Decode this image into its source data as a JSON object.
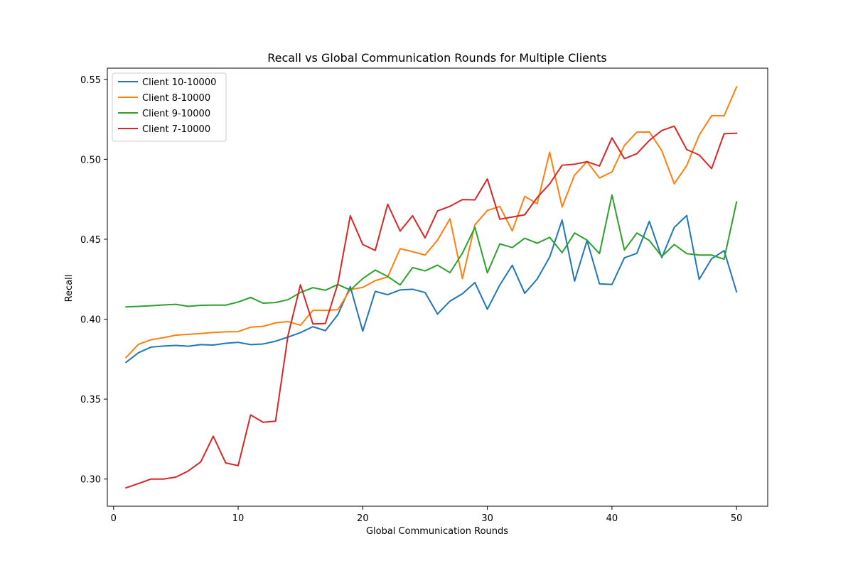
{
  "chart_data": {
    "type": "line",
    "title": "Recall vs Global Communication Rounds for Multiple Clients",
    "xlabel": "Global Communication Rounds",
    "ylabel": "Recall",
    "xlim": [
      -0.5,
      52.5
    ],
    "ylim": [
      0.283,
      0.557
    ],
    "xticks": [
      0,
      10,
      20,
      30,
      40,
      50
    ],
    "xtick_labels": [
      "0",
      "10",
      "20",
      "30",
      "40",
      "50"
    ],
    "yticks": [
      0.3,
      0.35,
      0.4,
      0.45,
      0.5,
      0.55
    ],
    "ytick_labels": [
      "0.30",
      "0.35",
      "0.40",
      "0.45",
      "0.50",
      "0.55"
    ],
    "grid": false,
    "legend_position": "top-left",
    "x": [
      1,
      2,
      3,
      4,
      5,
      6,
      7,
      8,
      9,
      10,
      11,
      12,
      13,
      14,
      15,
      16,
      17,
      18,
      19,
      20,
      21,
      22,
      23,
      24,
      25,
      26,
      27,
      28,
      29,
      30,
      31,
      32,
      33,
      34,
      35,
      36,
      37,
      38,
      39,
      40,
      41,
      42,
      43,
      44,
      45,
      46,
      47,
      48,
      49,
      50
    ],
    "series": [
      {
        "name": "Client 10-10000",
        "color": "#1f77b4",
        "values": [
          0.373,
          0.379,
          0.3825,
          0.3832,
          0.3836,
          0.3831,
          0.3841,
          0.3838,
          0.3849,
          0.3855,
          0.3841,
          0.3845,
          0.3862,
          0.3888,
          0.3916,
          0.3953,
          0.3928,
          0.4028,
          0.4203,
          0.3925,
          0.4174,
          0.4153,
          0.4183,
          0.4187,
          0.4167,
          0.4032,
          0.4113,
          0.4159,
          0.4229,
          0.4062,
          0.4214,
          0.4337,
          0.4162,
          0.4251,
          0.4388,
          0.462,
          0.4238,
          0.4492,
          0.4221,
          0.4217,
          0.4384,
          0.4412,
          0.4612,
          0.4385,
          0.4574,
          0.4648,
          0.4249,
          0.4378,
          0.4429,
          0.4171
        ]
      },
      {
        "name": "Client 8-10000",
        "color": "#ff7f0e",
        "values": [
          0.376,
          0.3843,
          0.3871,
          0.3884,
          0.39,
          0.3905,
          0.391,
          0.3917,
          0.3921,
          0.3922,
          0.395,
          0.3955,
          0.3977,
          0.3985,
          0.3962,
          0.4055,
          0.4055,
          0.4059,
          0.4185,
          0.4199,
          0.4241,
          0.4264,
          0.4441,
          0.4422,
          0.4401,
          0.4494,
          0.4628,
          0.4254,
          0.459,
          0.468,
          0.4705,
          0.4552,
          0.4768,
          0.4722,
          0.5044,
          0.4702,
          0.4901,
          0.4985,
          0.4883,
          0.4921,
          0.5087,
          0.517,
          0.5171,
          0.5054,
          0.4847,
          0.4961,
          0.5151,
          0.5273,
          0.5272,
          0.5453
        ]
      },
      {
        "name": "Client 9-10000",
        "color": "#2ca02c",
        "values": [
          0.4077,
          0.408,
          0.4084,
          0.4089,
          0.4093,
          0.408,
          0.4087,
          0.4088,
          0.4088,
          0.4107,
          0.4136,
          0.41,
          0.4104,
          0.4122,
          0.4167,
          0.4197,
          0.4181,
          0.4217,
          0.4182,
          0.4254,
          0.4307,
          0.4267,
          0.4214,
          0.4323,
          0.4302,
          0.4338,
          0.4291,
          0.4413,
          0.4574,
          0.429,
          0.4471,
          0.4448,
          0.4506,
          0.4475,
          0.4512,
          0.4416,
          0.4539,
          0.4494,
          0.441,
          0.4777,
          0.4433,
          0.4539,
          0.4492,
          0.4392,
          0.4467,
          0.441,
          0.4401,
          0.4401,
          0.4375,
          0.4733
        ]
      },
      {
        "name": "Client 7-10000",
        "color": "#d62728",
        "values": [
          0.2945,
          0.2972,
          0.3,
          0.3,
          0.3012,
          0.3051,
          0.3107,
          0.3268,
          0.3101,
          0.3084,
          0.3401,
          0.3355,
          0.3362,
          0.3898,
          0.4215,
          0.397,
          0.3973,
          0.4222,
          0.4647,
          0.4467,
          0.443,
          0.4719,
          0.4551,
          0.4647,
          0.4508,
          0.4677,
          0.4706,
          0.4748,
          0.4746,
          0.4877,
          0.4625,
          0.4639,
          0.4653,
          0.4761,
          0.4846,
          0.4963,
          0.4969,
          0.4985,
          0.4958,
          0.5134,
          0.5004,
          0.5035,
          0.5118,
          0.518,
          0.5207,
          0.5061,
          0.5027,
          0.4942,
          0.516,
          0.5163
        ]
      }
    ]
  }
}
